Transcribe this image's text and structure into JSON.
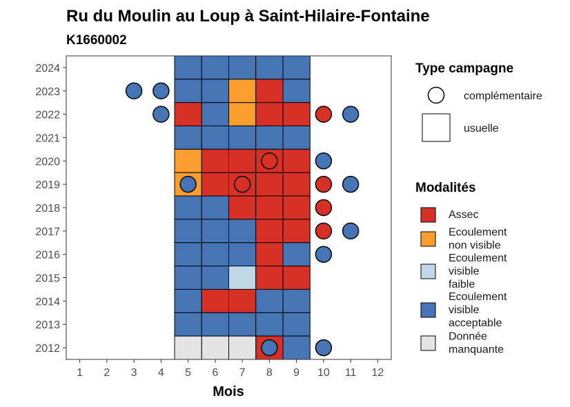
{
  "chart_data": {
    "type": "heatmap",
    "title": "Ru du Moulin au Loup à Saint-Hilaire-Fontaine",
    "subtitle": "K1660002",
    "xlabel": "Mois",
    "ylabel": "",
    "x_ticks": [
      1,
      2,
      3,
      4,
      5,
      6,
      7,
      8,
      9,
      10,
      11,
      12
    ],
    "y_ticks": [
      2012,
      2013,
      2014,
      2015,
      2016,
      2017,
      2018,
      2019,
      2020,
      2021,
      2022,
      2023,
      2024
    ],
    "xlim": [
      0.5,
      12.5
    ],
    "ylim": [
      2011.5,
      2024.5
    ],
    "grid": false,
    "legend_placement": "right",
    "modalities": [
      {
        "key": "assec",
        "lines": [
          "Assec"
        ],
        "color": "#d73027"
      },
      {
        "key": "ecnv",
        "lines": [
          "Ecoulement",
          "non visible"
        ],
        "color": "#fc9d2e"
      },
      {
        "key": "ecvf",
        "lines": [
          "Ecoulement",
          "visible",
          "faible"
        ],
        "color": "#bfd8e8"
      },
      {
        "key": "ecva",
        "lines": [
          "Ecoulement",
          "visible",
          "acceptable"
        ],
        "color": "#4575b4"
      },
      {
        "key": "dm",
        "lines": [
          "Donnée",
          "manquante"
        ],
        "color": "#e4e4e4"
      }
    ],
    "campaign_types": [
      {
        "key": "complementaire",
        "label": "complémentaire",
        "shape": "circle"
      },
      {
        "key": "usuelle",
        "label": "usuelle",
        "shape": "square"
      }
    ],
    "legend_titles": {
      "type": "Type campagne",
      "modalites": "Modalités"
    },
    "usuelle": [
      {
        "year": 2024,
        "months": {
          "5": "ecva",
          "6": "ecva",
          "7": "ecva",
          "8": "ecva",
          "9": "ecva"
        }
      },
      {
        "year": 2023,
        "months": {
          "5": "ecva",
          "6": "ecva",
          "7": "ecnv",
          "8": "assec",
          "9": "ecva"
        }
      },
      {
        "year": 2022,
        "months": {
          "5": "assec",
          "6": "ecva",
          "7": "ecnv",
          "8": "assec",
          "9": "assec"
        }
      },
      {
        "year": 2021,
        "months": {
          "5": "ecva",
          "6": "ecva",
          "7": "ecva",
          "8": "ecva",
          "9": "ecva"
        }
      },
      {
        "year": 2020,
        "months": {
          "5": "ecnv",
          "6": "assec",
          "7": "assec",
          "8": "assec",
          "9": "assec"
        }
      },
      {
        "year": 2019,
        "months": {
          "5": "ecnv",
          "6": "assec",
          "7": "assec",
          "8": "assec",
          "9": "assec"
        }
      },
      {
        "year": 2018,
        "months": {
          "5": "ecva",
          "6": "ecva",
          "7": "assec",
          "8": "assec",
          "9": "assec"
        }
      },
      {
        "year": 2017,
        "months": {
          "5": "ecva",
          "6": "ecva",
          "7": "ecva",
          "8": "assec",
          "9": "assec"
        }
      },
      {
        "year": 2016,
        "months": {
          "5": "ecva",
          "6": "ecva",
          "7": "ecva",
          "8": "assec",
          "9": "ecva"
        }
      },
      {
        "year": 2015,
        "months": {
          "5": "ecva",
          "6": "ecva",
          "7": "ecvf",
          "8": "assec",
          "9": "assec"
        }
      },
      {
        "year": 2014,
        "months": {
          "5": "ecva",
          "6": "assec",
          "7": "assec",
          "8": "ecva",
          "9": "ecva"
        }
      },
      {
        "year": 2013,
        "months": {
          "5": "ecva",
          "6": "ecva",
          "7": "ecva",
          "8": "ecva",
          "9": "ecva"
        }
      },
      {
        "year": 2012,
        "months": {
          "5": "dm",
          "6": "dm",
          "7": "dm",
          "8": "assec",
          "9": "ecva"
        }
      }
    ],
    "complementaire": [
      {
        "year": 2023,
        "month": 3,
        "mod": "ecva"
      },
      {
        "year": 2023,
        "month": 4,
        "mod": "ecva"
      },
      {
        "year": 2022,
        "month": 4,
        "mod": "ecva"
      },
      {
        "year": 2022,
        "month": 10,
        "mod": "assec"
      },
      {
        "year": 2022,
        "month": 11,
        "mod": "ecva"
      },
      {
        "year": 2020,
        "month": 8,
        "mod": "assec"
      },
      {
        "year": 2020,
        "month": 10,
        "mod": "ecva"
      },
      {
        "year": 2019,
        "month": 5,
        "mod": "ecva"
      },
      {
        "year": 2019,
        "month": 7,
        "mod": "assec"
      },
      {
        "year": 2019,
        "month": 10,
        "mod": "assec"
      },
      {
        "year": 2019,
        "month": 11,
        "mod": "ecva"
      },
      {
        "year": 2018,
        "month": 10,
        "mod": "assec"
      },
      {
        "year": 2017,
        "month": 10,
        "mod": "assec"
      },
      {
        "year": 2017,
        "month": 11,
        "mod": "ecva"
      },
      {
        "year": 2016,
        "month": 10,
        "mod": "ecva"
      },
      {
        "year": 2012,
        "month": 8,
        "mod": "ecva"
      },
      {
        "year": 2012,
        "month": 10,
        "mod": "ecva"
      }
    ]
  }
}
